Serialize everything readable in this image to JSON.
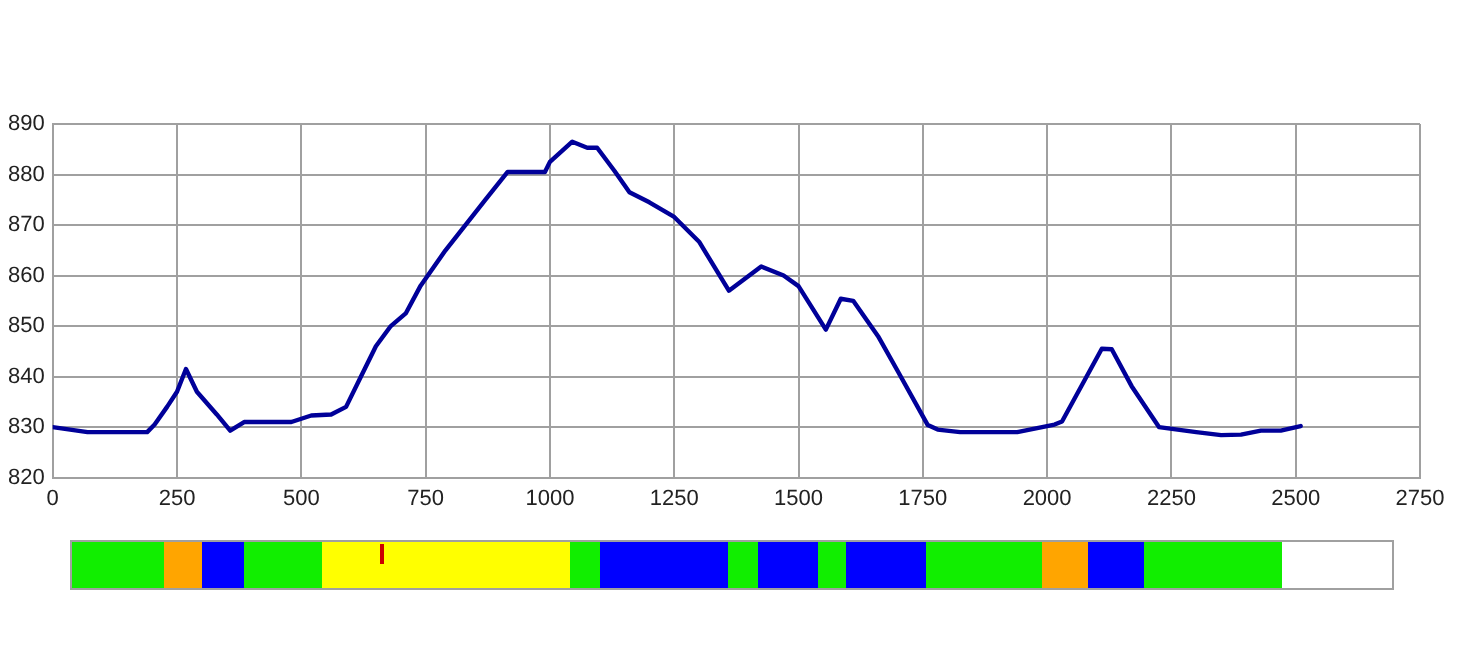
{
  "chart_data": {
    "type": "line",
    "x": [
      0,
      70,
      190,
      205,
      230,
      250,
      268,
      290,
      330,
      357,
      385,
      480,
      520,
      560,
      590,
      620,
      650,
      680,
      710,
      740,
      790,
      830,
      870,
      915,
      990,
      1000,
      1045,
      1075,
      1095,
      1130,
      1160,
      1200,
      1250,
      1300,
      1360,
      1425,
      1470,
      1500,
      1555,
      1585,
      1610,
      1660,
      1700,
      1760,
      1780,
      1825,
      1940,
      2015,
      2030,
      2110,
      2130,
      2170,
      2225,
      2300,
      2350,
      2390,
      2430,
      2470,
      2510
    ],
    "series": [
      {
        "color": "#000099",
        "values": [
          830,
          829,
          829,
          830.5,
          834,
          837,
          841.5,
          837,
          832.5,
          829.3,
          831,
          831,
          832.3,
          832.5,
          834,
          840,
          846,
          850,
          852.5,
          858,
          865,
          870,
          875,
          880.5,
          880.5,
          882.5,
          886.5,
          885.3,
          885.3,
          880.7,
          876.5,
          874.5,
          871.6,
          866.7,
          857,
          861.8,
          860,
          857.9,
          849.3,
          855.4,
          855,
          848,
          841,
          830.4,
          829.5,
          829,
          829,
          830.5,
          831.1,
          845.5,
          845.4,
          838.1,
          830,
          829,
          828.4,
          828.5,
          829.3,
          829.3,
          830.2
        ]
      }
    ],
    "xlim": [
      0,
      2750
    ],
    "xticks": [
      0,
      250,
      500,
      750,
      1000,
      1250,
      1500,
      1750,
      2000,
      2250,
      2500,
      2750
    ],
    "ylim": [
      820,
      890
    ],
    "yticks": [
      820,
      830,
      840,
      850,
      860,
      870,
      880,
      890
    ],
    "grid": true,
    "legend": false,
    "marker": "none",
    "line_style": "solid"
  }
}
